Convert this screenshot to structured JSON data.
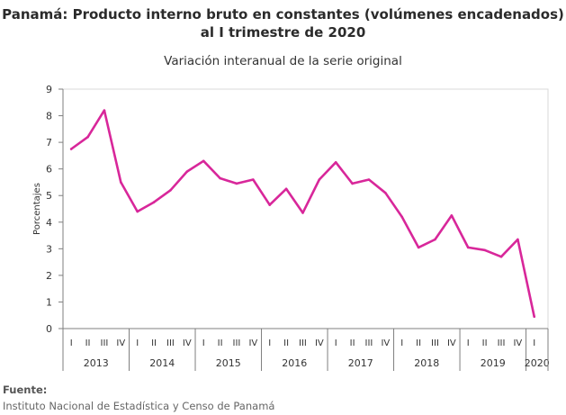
{
  "title_line1": "Panamá: Producto interno bruto en constantes (volúmenes encadenados)",
  "title_line2": "al I trimestre de 2020",
  "subtitle": "Variación interanual de la serie original",
  "source_label": "Fuente:",
  "source_text": "Instituto Nacional de Estadística y Censo de Panamá",
  "colors": {
    "series": "#d8279a",
    "axis": "#7f7f7f",
    "grid": "#d9d9d9"
  },
  "chart_data": {
    "type": "line",
    "ylabel": "Porcentajes",
    "xlabel": "",
    "ylim": [
      0,
      9
    ],
    "yticks": [
      "0",
      "1",
      "2",
      "3",
      "4",
      "5",
      "6",
      "7",
      "8",
      "9"
    ],
    "grid": false,
    "quarters": [
      "I",
      "II",
      "III",
      "IV",
      "I",
      "II",
      "III",
      "IV",
      "I",
      "II",
      "III",
      "IV",
      "I",
      "II",
      "III",
      "IV",
      "I",
      "II",
      "III",
      "IV",
      "I",
      "II",
      "III",
      "IV",
      "I",
      "II",
      "III",
      "IV",
      "I"
    ],
    "years": [
      {
        "label": "2013",
        "count": 4
      },
      {
        "label": "2014",
        "count": 4
      },
      {
        "label": "2015",
        "count": 4
      },
      {
        "label": "2016",
        "count": 4
      },
      {
        "label": "2017",
        "count": 4
      },
      {
        "label": "2018",
        "count": 4
      },
      {
        "label": "2019",
        "count": 4
      },
      {
        "label": "2020",
        "count": 1
      }
    ],
    "series": [
      {
        "values": [
          6.75,
          7.2,
          8.2,
          5.5,
          4.4,
          4.75,
          5.2,
          5.9,
          6.3,
          5.65,
          5.45,
          5.6,
          4.65,
          5.25,
          4.35,
          5.6,
          6.25,
          5.45,
          5.6,
          5.1,
          4.2,
          3.05,
          3.35,
          4.25,
          3.05,
          2.95,
          2.7,
          3.35,
          0.45
        ]
      }
    ]
  }
}
